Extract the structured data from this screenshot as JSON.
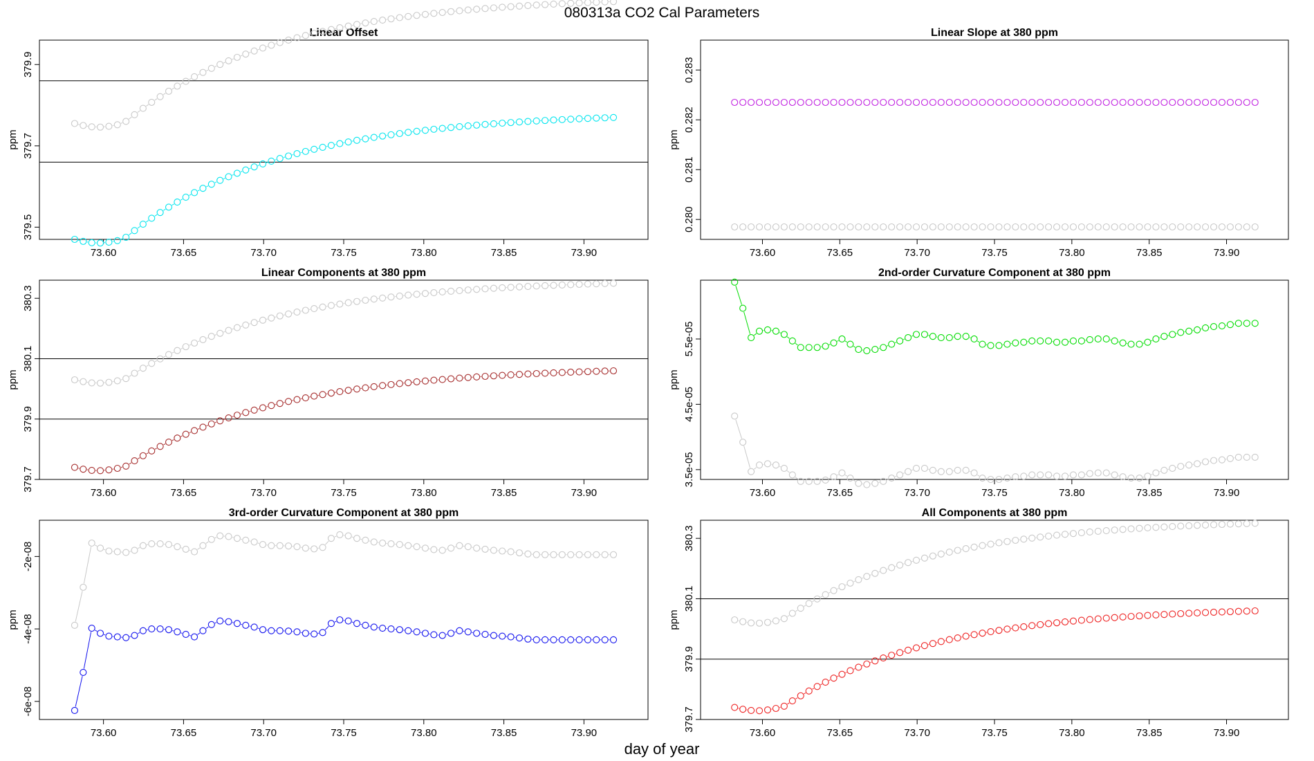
{
  "figure": {
    "title": "080313a   CO2 Cal Parameters",
    "xlabel": "day of year"
  },
  "chart_data": [
    {
      "type": "scatter",
      "title": "Linear Offset",
      "xlabel": "",
      "ylabel": "ppm",
      "xlim": [
        73.56,
        73.94
      ],
      "ylim": [
        379.47,
        379.96
      ],
      "xticks": [
        "73.60",
        "73.65",
        "73.70",
        "73.75",
        "73.80",
        "73.85",
        "73.90"
      ],
      "yticks": [
        {
          "value": 379.5,
          "label": "379.5"
        },
        {
          "value": 379.7,
          "label": "379.7"
        },
        {
          "value": 379.9,
          "label": "379.9"
        }
      ],
      "hlines": [
        379.66,
        379.86
      ],
      "show_xticks": true,
      "series": [
        {
          "name": "gray",
          "color": "#c8c8c8",
          "shape": "offset",
          "offset": 0.285
        },
        {
          "name": "data",
          "color": "#00e5ee",
          "shape": "sigmoid",
          "start": 379.47,
          "min": 379.462,
          "end": 379.77
        }
      ]
    },
    {
      "type": "scatter",
      "title": "Linear Slope at 380 ppm",
      "xlabel": "",
      "ylabel": "ppm",
      "xlim": [
        73.56,
        73.94
      ],
      "ylim": [
        0.2796,
        0.2836
      ],
      "xticks": [
        "73.60",
        "73.65",
        "73.70",
        "73.75",
        "73.80",
        "73.85",
        "73.90"
      ],
      "yticks": [
        {
          "value": 0.28,
          "label": "0.280"
        },
        {
          "value": 0.281,
          "label": "0.281"
        },
        {
          "value": 0.282,
          "label": "0.282"
        },
        {
          "value": 0.283,
          "label": "0.283"
        }
      ],
      "hlines": [],
      "show_xticks": true,
      "series": [
        {
          "name": "gray",
          "color": "#c8c8c8",
          "shape": "slope",
          "base": 0.27985,
          "amp": 0.000118
        },
        {
          "name": "data",
          "color": "#c020e0",
          "shape": "slope",
          "base": 0.28235,
          "amp": 0.000118
        }
      ]
    },
    {
      "type": "scatter",
      "title": "Linear Components at 380 ppm",
      "xlabel": "",
      "ylabel": "ppm",
      "xlim": [
        73.56,
        73.94
      ],
      "ylim": [
        379.7,
        380.36
      ],
      "xticks": [
        "73.60",
        "73.65",
        "73.70",
        "73.75",
        "73.80",
        "73.85",
        "73.90"
      ],
      "yticks": [
        {
          "value": 379.7,
          "label": "379.7"
        },
        {
          "value": 379.9,
          "label": "379.9"
        },
        {
          "value": 380.1,
          "label": "380.1"
        },
        {
          "value": 380.3,
          "label": "380.3"
        }
      ],
      "hlines": [
        379.9,
        380.1
      ],
      "show_xticks": true,
      "series": [
        {
          "name": "gray",
          "color": "#c8c8c8",
          "shape": "offset",
          "offset": 0.29
        },
        {
          "name": "data",
          "color": "#a52a2a",
          "shape": "sigmoid",
          "start": 379.74,
          "min": 379.73,
          "end": 380.06
        }
      ]
    },
    {
      "type": "scatter",
      "title": "2nd-order Curvature Component at 380 ppm",
      "xlabel": "",
      "ylabel": "ppm",
      "xlim": [
        73.56,
        73.94
      ],
      "ylim": [
        3.35e-05,
        6.4e-05
      ],
      "xticks": [
        "73.60",
        "73.65",
        "73.70",
        "73.75",
        "73.80",
        "73.85",
        "73.90"
      ],
      "yticks": [
        {
          "value": 3.5e-05,
          "label": "3.5e-05"
        },
        {
          "value": 4.5e-05,
          "label": "4.5e-05"
        },
        {
          "value": 5.5e-05,
          "label": "5.5e-05"
        }
      ],
      "hlines": [],
      "show_xticks": true,
      "series": [
        {
          "name": "gray",
          "color": "#c8c8c8",
          "shape": "curv2",
          "base": 3.37e-05
        },
        {
          "name": "data",
          "color": "#00dd00",
          "shape": "curv2",
          "base": 5.42e-05
        }
      ]
    },
    {
      "type": "scatter",
      "title": "3rd-order Curvature Component at 380 ppm",
      "xlabel": "",
      "ylabel": "ppm",
      "xlim": [
        73.56,
        73.94
      ],
      "ylim": [
        -6.5e-08,
        -1e-08
      ],
      "xticks": [
        "73.60",
        "73.65",
        "73.70",
        "73.75",
        "73.80",
        "73.85",
        "73.90"
      ],
      "yticks": [
        {
          "value": -6e-08,
          "label": "-6e-08"
        },
        {
          "value": -4e-08,
          "label": "-4e-08"
        },
        {
          "value": -2e-08,
          "label": "-2e-08"
        }
      ],
      "hlines": [],
      "show_xticks": true,
      "series": [
        {
          "name": "gray",
          "color": "#c8c8c8",
          "shape": "curv3",
          "offset": 2.35e-08
        },
        {
          "name": "data",
          "color": "#1010ee",
          "shape": "curv3",
          "offset": 0
        }
      ]
    },
    {
      "type": "scatter",
      "title": "All Components at 380 ppm",
      "xlabel": "",
      "ylabel": "ppm",
      "xlim": [
        73.56,
        73.94
      ],
      "ylim": [
        379.7,
        380.36
      ],
      "xticks": [
        "73.60",
        "73.65",
        "73.70",
        "73.75",
        "73.80",
        "73.85",
        "73.90"
      ],
      "yticks": [
        {
          "value": 379.7,
          "label": "379.7"
        },
        {
          "value": 379.9,
          "label": "379.9"
        },
        {
          "value": 380.1,
          "label": "380.1"
        },
        {
          "value": 380.3,
          "label": "380.3"
        }
      ],
      "hlines": [
        379.9,
        380.1
      ],
      "show_xticks": true,
      "series": [
        {
          "name": "gray",
          "color": "#c8c8c8",
          "shape": "offset",
          "offset": 0.29
        },
        {
          "name": "data",
          "color": "#ee2020",
          "shape": "sigmoid",
          "start": 379.74,
          "min": 379.73,
          "end": 380.06
        }
      ]
    }
  ],
  "sampling": {
    "x_start": 73.582,
    "x_step": 0.00534,
    "count": 64
  }
}
